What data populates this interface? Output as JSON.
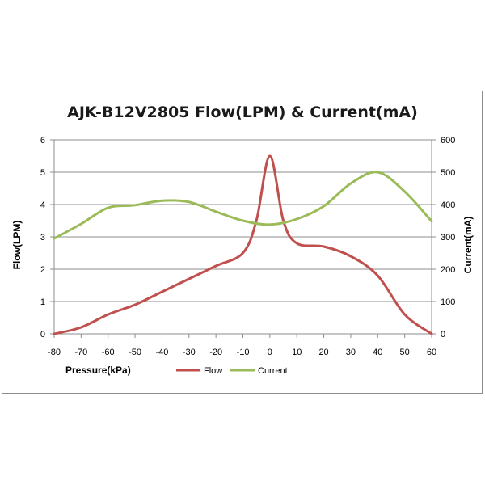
{
  "chart_data": {
    "type": "line",
    "title": "AJK-B12V2805 Flow(LPM) & Current(mA)",
    "xlabel": "Pressure(kPa)",
    "ylabel": "Flow(LPM)",
    "y2label": "Current(mA)",
    "xlim": [
      -80,
      60
    ],
    "ylim": [
      0,
      6
    ],
    "y2lim": [
      0,
      600
    ],
    "x_ticks": [
      "-80",
      "-70",
      "-60",
      "-50",
      "-40",
      "-30",
      "-20",
      "-10",
      "0",
      "10",
      "20",
      "30",
      "40",
      "50",
      "60"
    ],
    "y_ticks": [
      "0",
      "1",
      "2",
      "3",
      "4",
      "5",
      "6"
    ],
    "y2_ticks": [
      "0",
      "100",
      "200",
      "300",
      "400",
      "500",
      "600"
    ],
    "grid": "horizontal",
    "legend_position": "bottom",
    "series": [
      {
        "name": "Flow",
        "axis": "left",
        "color": "#c0504d",
        "x": [
          -80,
          -70,
          -60,
          -50,
          -40,
          -30,
          -20,
          -10,
          -5,
          0,
          5,
          10,
          20,
          30,
          40,
          50,
          60
        ],
        "y": [
          0,
          0.2,
          0.6,
          0.9,
          1.3,
          1.7,
          2.1,
          2.5,
          3.5,
          5.5,
          3.5,
          2.8,
          2.7,
          2.4,
          1.8,
          0.6,
          0
        ]
      },
      {
        "name": "Current",
        "axis": "right",
        "color": "#9bbb59",
        "x": [
          -80,
          -70,
          -60,
          -50,
          -40,
          -30,
          -20,
          -10,
          0,
          10,
          20,
          30,
          40,
          50,
          60
        ],
        "y": [
          295,
          340,
          390,
          398,
          412,
          408,
          378,
          350,
          338,
          355,
          395,
          465,
          500,
          440,
          348
        ]
      }
    ]
  }
}
